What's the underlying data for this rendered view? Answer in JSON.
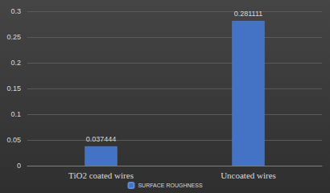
{
  "chart_data": {
    "type": "bar",
    "categories": [
      "TiO2 coated wires",
      "Uncoated wires"
    ],
    "series": [
      {
        "name": "SURFACE ROUGHNESS",
        "color": "#4472c4",
        "values": [
          0.037444,
          0.281111
        ]
      }
    ],
    "ylim": [
      0,
      0.3
    ],
    "yticks": [
      0,
      0.05,
      0.1,
      0.15,
      0.2,
      0.25,
      0.3
    ],
    "grid": true,
    "legend": "bottom",
    "data_labels": true
  }
}
